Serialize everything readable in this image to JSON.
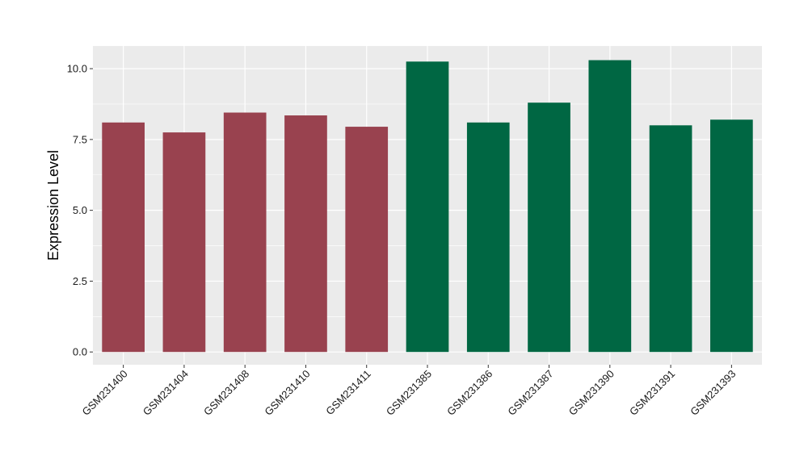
{
  "chart_data": {
    "type": "bar",
    "title": "",
    "xlabel": "",
    "ylabel": "Expression Level",
    "ylim": [
      -0.45,
      10.8
    ],
    "yticks": [
      0.0,
      2.5,
      5.0,
      7.5,
      10.0
    ],
    "ytick_labels": [
      "0.0",
      "2.5",
      "5.0",
      "7.5",
      "10.0"
    ],
    "categories": [
      "GSM231400",
      "GSM231404",
      "GSM231408",
      "GSM231410",
      "GSM231411",
      "GSM231385",
      "GSM231386",
      "GSM231387",
      "GSM231390",
      "GSM231391",
      "GSM231393"
    ],
    "values": [
      8.1,
      7.75,
      8.45,
      8.35,
      7.95,
      10.25,
      8.1,
      8.8,
      10.3,
      8.0,
      8.2
    ],
    "bar_colors": [
      "#99424f",
      "#99424f",
      "#99424f",
      "#99424f",
      "#99424f",
      "#006743",
      "#006743",
      "#006743",
      "#006743",
      "#006743",
      "#006743"
    ],
    "grid": true,
    "legend": "none",
    "panel_background": "#ebebeb",
    "gridline_color": "#ffffff"
  }
}
